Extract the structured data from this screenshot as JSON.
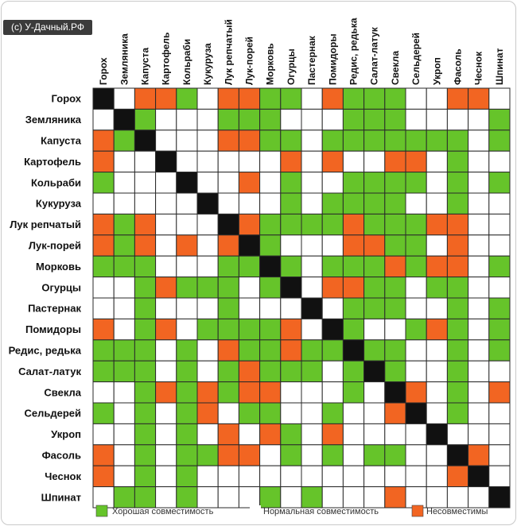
{
  "watermark": "(c) У-Дачный.РФ",
  "colors": {
    "good": "#66c42a",
    "normal": "#ffffff",
    "bad": "#f26522",
    "self": "#111111",
    "grid": "#2a2a2a"
  },
  "chart_data": {
    "type": "heatmap",
    "title": "",
    "plants": [
      "Горох",
      "Земляника",
      "Капуста",
      "Картофель",
      "Кольраби",
      "Кукуруза",
      "Лук репчатый",
      "Лук-порей",
      "Морковь",
      "Огурцы",
      "Пастернак",
      "Помидоры",
      "Редис, редька",
      "Салат-латук",
      "Свекла",
      "Сельдерей",
      "Укроп",
      "Фасоль",
      "Чеснок",
      "Шпинат"
    ],
    "column_labels": [
      "Горох",
      "Земляника",
      "Капуста",
      "Картофель",
      "Кольраби",
      "Кукуруза",
      "Лук репчатый",
      "Лук-порей",
      "Морковь",
      "Огурцы",
      "Пастернак",
      "Помидоры",
      "Редис, редька",
      "Салат-латук",
      "Свекла",
      "Сельдерей",
      "Укроп",
      "Фасоль",
      "Чеснок",
      "Шпинат"
    ],
    "legend": {
      "good": "Хорошая совместимость",
      "normal": "Нормальная совместимость",
      "bad": "Несовместимы"
    },
    "value_codes": {
      "G": "good",
      "N": "normal",
      "B": "bad",
      "X": "same plant"
    },
    "matrix": [
      "XNBBGNBBGGNBGGGNNBBN",
      "NXGNNNGGGNNNGGGNNNNG",
      "BGXNNNBBGGNGGGGGGGNG",
      "BNNXNNNNNBNBNNBBNGNN",
      "GNNNXNNBNGNNGGGGNGNG",
      "NNNNNXNNNGNGGGGNNGNN",
      "BGBNNNXBGGGGBGGGBBNN",
      "BGBNBNBXGNNNBBGGNBNN",
      "GGGNNNGGXGNGGGBGBBNG",
      "NNGBGGGNGXNBBGGNGGNN",
      "NNGNNNGNNNXNGGGNNGNG",
      "BNGBNGGGGBNXGNNGBGNG",
      "GGGNGNBGGBGGXGGNNGNG",
      "GGGNGNGBGGGNGXGNNGNN",
      "NNGBGBGBBNNNGNXBNGNB",
      "GNGNGBNGGNNGNNBXNGNN",
      "NNGNGNBNBGNBNNNNXNNN",
      "BNGNGGBBNGNGNGGNNXBN",
      "BNGNGNNNNNNNNNNNNBXN",
      "NGGNGNNNGNGNNNBNNNNX"
    ]
  }
}
